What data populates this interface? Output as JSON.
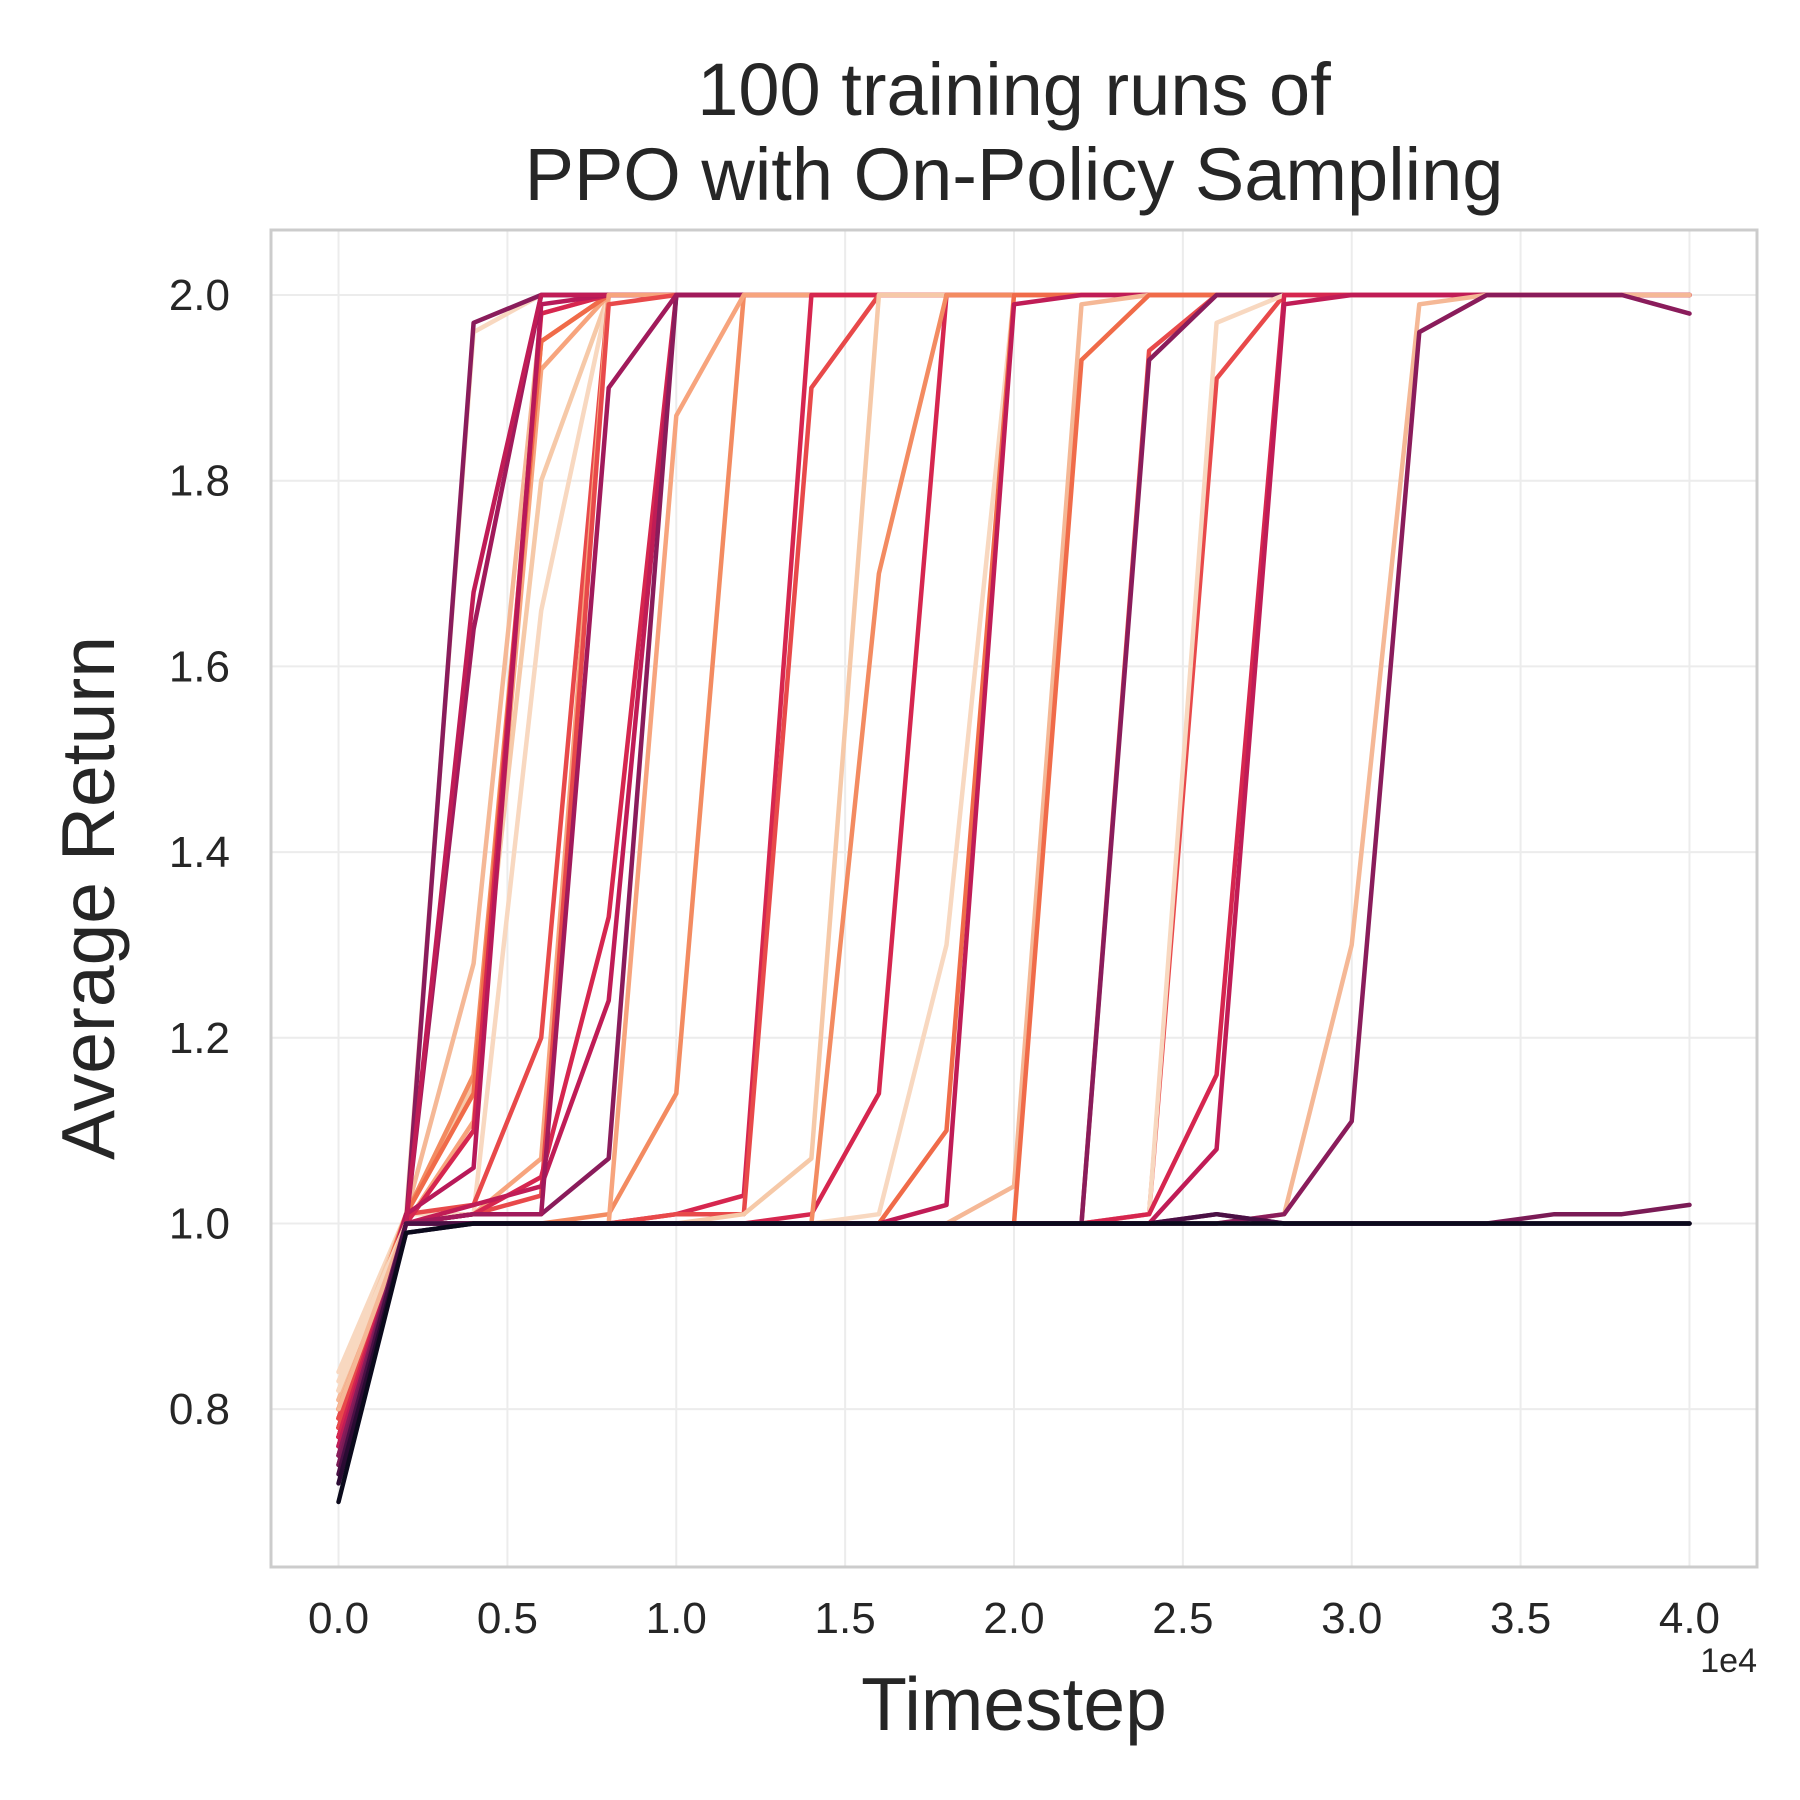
{
  "chart_data": {
    "type": "line",
    "title_line1": "100 training runs of",
    "title_line2": "PPO with On-Policy Sampling",
    "xlabel": "Timestep",
    "ylabel": "Average Return",
    "x_offset_label": "1e4",
    "x_ticks": [
      "0.0",
      "0.5",
      "1.0",
      "1.5",
      "2.0",
      "2.5",
      "3.0",
      "3.5",
      "4.0"
    ],
    "y_ticks": [
      "0.8",
      "1.0",
      "1.2",
      "1.4",
      "1.6",
      "1.8",
      "2.0"
    ],
    "xlim": [
      -0.2,
      4.2
    ],
    "ylim": [
      0.63,
      2.07
    ],
    "x_scale": 10000,
    "grid": true,
    "legend": "none",
    "x": [
      0,
      0.2,
      0.4,
      0.6,
      0.8,
      1.0,
      1.2,
      1.4,
      1.6,
      1.8,
      2.0,
      2.2,
      2.4,
      2.6,
      2.8,
      3.0,
      3.2,
      3.4,
      3.6,
      3.8,
      4.0
    ],
    "series": [
      {
        "color": "#f8d8c0",
        "values": [
          0.84,
          1.01,
          1.96,
          2.0,
          2.0,
          2.0,
          2.0,
          2.0,
          2.0,
          2.0,
          2.0,
          2.0,
          2.0,
          2.0,
          2.0,
          2.0,
          2.0,
          2.0,
          2.0,
          2.0,
          2.0
        ]
      },
      {
        "color": "#f6c9a8",
        "values": [
          0.82,
          1.01,
          1.15,
          1.8,
          2.0,
          2.0,
          2.0,
          2.0,
          2.0,
          2.0,
          2.0,
          2.0,
          2.0,
          2.0,
          2.0,
          2.0,
          2.0,
          2.0,
          2.0,
          2.0,
          2.0
        ]
      },
      {
        "color": "#f5b896",
        "values": [
          0.8,
          1.01,
          1.28,
          1.98,
          2.0,
          2.0,
          2.0,
          2.0,
          2.0,
          2.0,
          2.0,
          2.0,
          2.0,
          2.0,
          2.0,
          2.0,
          2.0,
          2.0,
          2.0,
          2.0,
          2.0
        ]
      },
      {
        "color": "#f8d8c0",
        "values": [
          0.79,
          1.01,
          1.01,
          1.66,
          2.0,
          2.0,
          2.0,
          2.0,
          2.0,
          2.0,
          2.0,
          2.0,
          2.0,
          2.0,
          2.0,
          2.0,
          2.0,
          2.0,
          2.0,
          2.0,
          2.0
        ]
      },
      {
        "color": "#f7a47d",
        "values": [
          0.81,
          1.0,
          1.11,
          1.92,
          2.0,
          2.0,
          2.0,
          2.0,
          2.0,
          2.0,
          2.0,
          2.0,
          2.0,
          2.0,
          2.0,
          2.0,
          2.0,
          2.0,
          2.0,
          2.0,
          2.0
        ]
      },
      {
        "color": "#f38b61",
        "values": [
          0.78,
          1.01,
          1.16,
          1.95,
          2.0,
          2.0,
          2.0,
          2.0,
          2.0,
          2.0,
          2.0,
          2.0,
          2.0,
          2.0,
          2.0,
          2.0,
          2.0,
          2.0,
          2.0,
          2.0,
          2.0
        ]
      },
      {
        "color": "#f06b49",
        "values": [
          0.8,
          1.01,
          1.14,
          1.95,
          2.0,
          2.0,
          2.0,
          2.0,
          2.0,
          2.0,
          2.0,
          2.0,
          2.0,
          2.0,
          2.0,
          2.0,
          2.0,
          2.0,
          2.0,
          2.0,
          2.0
        ]
      },
      {
        "color": "#e8494a",
        "values": [
          0.77,
          1.01,
          1.02,
          1.2,
          2.0,
          2.0,
          2.0,
          2.0,
          2.0,
          2.0,
          2.0,
          2.0,
          2.0,
          2.0,
          2.0,
          2.0,
          2.0,
          2.0,
          2.0,
          2.0,
          2.0
        ]
      },
      {
        "color": "#d6264f",
        "values": [
          0.79,
          1.0,
          1.1,
          1.98,
          2.0,
          2.0,
          2.0,
          2.0,
          2.0,
          2.0,
          2.0,
          2.0,
          2.0,
          2.0,
          2.0,
          2.0,
          2.0,
          2.0,
          2.0,
          2.0,
          2.0
        ]
      },
      {
        "color": "#b81959",
        "values": [
          0.76,
          1.01,
          1.06,
          1.99,
          2.0,
          2.0,
          2.0,
          2.0,
          2.0,
          2.0,
          2.0,
          2.0,
          2.0,
          2.0,
          2.0,
          2.0,
          2.0,
          2.0,
          2.0,
          2.0,
          2.0
        ]
      },
      {
        "color": "#a11a5b",
        "values": [
          0.78,
          1.0,
          1.64,
          2.0,
          2.0,
          2.0,
          2.0,
          2.0,
          2.0,
          2.0,
          2.0,
          2.0,
          2.0,
          2.0,
          2.0,
          2.0,
          2.0,
          2.0,
          2.0,
          2.0,
          2.0
        ]
      },
      {
        "color": "#8a1c5b",
        "values": [
          0.77,
          1.0,
          1.97,
          2.0,
          2.0,
          2.0,
          2.0,
          2.0,
          2.0,
          2.0,
          2.0,
          2.0,
          2.0,
          2.0,
          2.0,
          2.0,
          2.0,
          2.0,
          2.0,
          2.0,
          2.0
        ]
      },
      {
        "color": "#c01c56",
        "values": [
          0.75,
          1.0,
          1.68,
          2.0,
          2.0,
          2.0,
          2.0,
          2.0,
          2.0,
          2.0,
          2.0,
          2.0,
          2.0,
          2.0,
          2.0,
          2.0,
          2.0,
          2.0,
          2.0,
          2.0,
          2.0
        ]
      },
      {
        "color": "#f7a47d",
        "values": [
          0.8,
          1.0,
          1.01,
          1.07,
          2.0,
          2.0,
          2.0,
          2.0,
          2.0,
          2.0,
          2.0,
          2.0,
          2.0,
          2.0,
          2.0,
          2.0,
          2.0,
          2.0,
          2.0,
          2.0,
          2.0
        ]
      },
      {
        "color": "#e8494a",
        "values": [
          0.79,
          1.0,
          1.01,
          1.03,
          1.99,
          2.0,
          2.0,
          2.0,
          2.0,
          2.0,
          2.0,
          2.0,
          2.0,
          2.0,
          2.0,
          2.0,
          2.0,
          2.0,
          2.0,
          2.0,
          2.0
        ]
      },
      {
        "color": "#d6264f",
        "values": [
          0.78,
          1.0,
          1.01,
          1.05,
          1.33,
          2.0,
          2.0,
          2.0,
          2.0,
          2.0,
          2.0,
          2.0,
          2.0,
          2.0,
          2.0,
          2.0,
          2.0,
          2.0,
          2.0,
          2.0,
          2.0
        ]
      },
      {
        "color": "#c01c56",
        "values": [
          0.77,
          1.0,
          1.02,
          1.04,
          1.24,
          2.0,
          2.0,
          2.0,
          2.0,
          2.0,
          2.0,
          2.0,
          2.0,
          2.0,
          2.0,
          2.0,
          2.0,
          2.0,
          2.0,
          2.0,
          2.0
        ]
      },
      {
        "color": "#8a1c5b",
        "values": [
          0.74,
          1.0,
          1.01,
          1.01,
          1.07,
          2.0,
          2.0,
          2.0,
          2.0,
          2.0,
          2.0,
          2.0,
          2.0,
          2.0,
          2.0,
          2.0,
          2.0,
          2.0,
          2.0,
          2.0,
          2.0
        ]
      },
      {
        "color": "#a11a5b",
        "values": [
          0.76,
          1.0,
          1.01,
          1.01,
          1.9,
          2.0,
          2.0,
          2.0,
          2.0,
          2.0,
          2.0,
          2.0,
          2.0,
          2.0,
          2.0,
          2.0,
          2.0,
          2.0,
          2.0,
          2.0,
          2.0
        ]
      },
      {
        "color": "#f38b61",
        "values": [
          0.8,
          1.0,
          1.0,
          1.0,
          1.01,
          1.14,
          2.0,
          2.0,
          2.0,
          2.0,
          2.0,
          2.0,
          2.0,
          2.0,
          2.0,
          2.0,
          2.0,
          2.0,
          2.0,
          2.0,
          2.0
        ]
      },
      {
        "color": "#f7a47d",
        "values": [
          0.81,
          1.0,
          1.0,
          1.0,
          1.0,
          1.87,
          2.0,
          2.0,
          2.0,
          2.0,
          2.0,
          2.0,
          2.0,
          2.0,
          2.0,
          2.0,
          2.0,
          2.0,
          2.0,
          2.0,
          2.0
        ]
      },
      {
        "color": "#d6264f",
        "values": [
          0.77,
          1.0,
          1.0,
          1.0,
          1.0,
          1.01,
          1.03,
          2.0,
          2.0,
          2.0,
          2.0,
          2.0,
          2.0,
          2.0,
          2.0,
          2.0,
          2.0,
          2.0,
          2.0,
          2.0,
          2.0
        ]
      },
      {
        "color": "#e8494a",
        "values": [
          0.79,
          1.0,
          1.0,
          1.0,
          1.0,
          1.01,
          1.01,
          1.9,
          2.0,
          2.0,
          2.0,
          2.0,
          2.0,
          2.0,
          2.0,
          2.0,
          2.0,
          2.0,
          2.0,
          2.0,
          2.0
        ]
      },
      {
        "color": "#f6c9a8",
        "values": [
          0.82,
          1.0,
          1.0,
          1.0,
          1.0,
          1.0,
          1.01,
          1.07,
          2.0,
          2.0,
          2.0,
          2.0,
          2.0,
          2.0,
          2.0,
          2.0,
          2.0,
          2.0,
          2.0,
          2.0,
          2.0
        ]
      },
      {
        "color": "#d6264f",
        "values": [
          0.78,
          1.0,
          1.0,
          1.0,
          1.0,
          1.0,
          1.0,
          1.01,
          1.14,
          2.0,
          2.0,
          2.0,
          2.0,
          2.0,
          2.0,
          2.0,
          2.0,
          2.0,
          2.0,
          2.0,
          2.0
        ]
      },
      {
        "color": "#f38b61",
        "values": [
          0.8,
          1.0,
          1.0,
          1.0,
          1.0,
          1.0,
          1.0,
          1.0,
          1.7,
          2.0,
          2.0,
          2.0,
          2.0,
          2.0,
          2.0,
          2.0,
          2.0,
          2.0,
          2.0,
          2.0,
          2.0
        ]
      },
      {
        "color": "#f8d8c0",
        "values": [
          0.83,
          1.0,
          1.0,
          1.0,
          1.0,
          1.0,
          1.0,
          1.0,
          1.01,
          1.3,
          2.0,
          2.0,
          2.0,
          2.0,
          2.0,
          2.0,
          2.0,
          2.0,
          2.0,
          2.0,
          2.0
        ]
      },
      {
        "color": "#f06b49",
        "values": [
          0.79,
          1.0,
          1.0,
          1.0,
          1.0,
          1.0,
          1.0,
          1.0,
          1.0,
          1.1,
          2.0,
          2.0,
          2.0,
          2.0,
          2.0,
          2.0,
          2.0,
          2.0,
          2.0,
          2.0,
          2.0
        ]
      },
      {
        "color": "#c01c56",
        "values": [
          0.77,
          1.0,
          1.0,
          1.0,
          1.0,
          1.0,
          1.0,
          1.0,
          1.0,
          1.02,
          1.99,
          2.0,
          2.0,
          2.0,
          2.0,
          2.0,
          2.0,
          2.0,
          2.0,
          2.0,
          2.0
        ]
      },
      {
        "color": "#f5b896",
        "values": [
          0.81,
          1.0,
          1.0,
          1.0,
          1.0,
          1.0,
          1.0,
          1.0,
          1.0,
          1.0,
          1.04,
          1.99,
          2.0,
          2.0,
          2.0,
          2.0,
          2.0,
          2.0,
          2.0,
          2.0,
          2.0
        ]
      },
      {
        "color": "#f06b49",
        "values": [
          0.8,
          1.0,
          1.0,
          1.0,
          1.0,
          1.0,
          1.0,
          1.0,
          1.0,
          1.0,
          1.0,
          1.93,
          2.0,
          2.0,
          2.0,
          2.0,
          2.0,
          2.0,
          2.0,
          2.0,
          2.0
        ]
      },
      {
        "color": "#e8494a",
        "values": [
          0.78,
          1.0,
          1.0,
          1.0,
          1.0,
          1.0,
          1.0,
          1.0,
          1.0,
          1.0,
          1.0,
          1.0,
          1.94,
          2.0,
          2.0,
          2.0,
          2.0,
          2.0,
          2.0,
          2.0,
          2.0
        ]
      },
      {
        "color": "#8a1c5b",
        "values": [
          0.75,
          1.0,
          1.0,
          1.0,
          1.0,
          1.0,
          1.0,
          1.0,
          1.0,
          1.0,
          1.0,
          1.0,
          1.93,
          2.0,
          2.0,
          2.0,
          2.0,
          2.0,
          2.0,
          2.0,
          2.0
        ]
      },
      {
        "color": "#e8494a",
        "values": [
          0.79,
          1.0,
          1.0,
          1.0,
          1.0,
          1.0,
          1.0,
          1.0,
          1.0,
          1.0,
          1.0,
          1.0,
          1.01,
          1.91,
          2.0,
          2.0,
          2.0,
          2.0,
          2.0,
          2.0,
          2.0
        ]
      },
      {
        "color": "#f8d8c0",
        "values": [
          0.82,
          1.0,
          1.0,
          1.0,
          1.0,
          1.0,
          1.0,
          1.0,
          1.0,
          1.0,
          1.0,
          1.0,
          1.01,
          1.97,
          2.0,
          2.0,
          2.0,
          2.0,
          2.0,
          2.0,
          2.0
        ]
      },
      {
        "color": "#d6264f",
        "values": [
          0.77,
          1.0,
          1.0,
          1.0,
          1.0,
          1.0,
          1.0,
          1.0,
          1.0,
          1.0,
          1.0,
          1.0,
          1.01,
          1.16,
          2.0,
          2.0,
          2.0,
          2.0,
          2.0,
          2.0,
          2.0
        ]
      },
      {
        "color": "#c01c56",
        "values": [
          0.76,
          1.0,
          1.0,
          1.0,
          1.0,
          1.0,
          1.0,
          1.0,
          1.0,
          1.0,
          1.0,
          1.0,
          1.0,
          1.08,
          1.99,
          2.0,
          2.0,
          2.0,
          2.0,
          2.0,
          2.0
        ]
      },
      {
        "color": "#f5b896",
        "values": [
          0.8,
          1.0,
          1.0,
          1.0,
          1.0,
          1.0,
          1.0,
          1.0,
          1.0,
          1.0,
          1.0,
          1.0,
          1.0,
          1.0,
          1.01,
          1.3,
          1.99,
          2.0,
          2.0,
          2.0,
          2.0
        ]
      },
      {
        "color": "#8a1c5b",
        "values": [
          0.75,
          1.0,
          1.0,
          1.0,
          1.0,
          1.0,
          1.0,
          1.0,
          1.0,
          1.0,
          1.0,
          1.0,
          1.0,
          1.0,
          1.01,
          1.11,
          1.96,
          2.0,
          2.0,
          2.0,
          1.98
        ]
      },
      {
        "color": "#7a1b56",
        "values": [
          0.74,
          1.0,
          1.0,
          1.0,
          1.0,
          1.0,
          1.0,
          1.0,
          1.0,
          1.0,
          1.0,
          1.0,
          1.0,
          1.01,
          1.0,
          1.0,
          1.0,
          1.0,
          1.01,
          1.01,
          1.02
        ]
      },
      {
        "color": "#4a1045",
        "values": [
          0.73,
          1.0,
          1.0,
          1.0,
          1.0,
          1.0,
          1.0,
          1.0,
          1.0,
          1.0,
          1.0,
          1.0,
          1.0,
          1.01,
          1.0,
          1.0,
          1.0,
          1.0,
          1.0,
          1.0,
          1.0
        ]
      },
      {
        "color": "#2a0b33",
        "values": [
          0.72,
          0.99,
          1.0,
          1.0,
          1.0,
          1.0,
          1.0,
          1.0,
          1.0,
          1.0,
          1.0,
          1.0,
          1.0,
          1.0,
          1.0,
          1.0,
          1.0,
          1.0,
          1.0,
          1.0,
          1.0
        ]
      },
      {
        "color": "#0b0a1c",
        "values": [
          0.7,
          0.99,
          1.0,
          1.0,
          1.0,
          1.0,
          1.0,
          1.0,
          1.0,
          1.0,
          1.0,
          1.0,
          1.0,
          1.0,
          1.0,
          1.0,
          1.0,
          1.0,
          1.0,
          1.0,
          1.0
        ]
      }
    ]
  }
}
